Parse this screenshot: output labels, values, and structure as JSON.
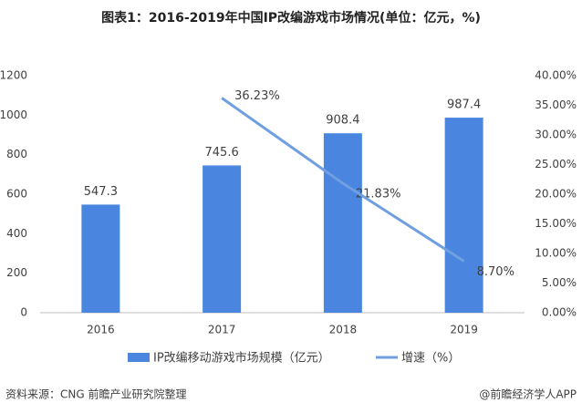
{
  "chart_data": {
    "type": "bar",
    "title": "图表1：2016-2019年中国IP改编游戏市场情况(单位：亿元，%)",
    "categories": [
      "2016",
      "2017",
      "2018",
      "2019"
    ],
    "series": [
      {
        "name": "IP改编移动游戏市场规模（亿元）",
        "type": "bar",
        "color": "#4a86e0",
        "values": [
          547.3,
          745.6,
          908.4,
          987.4
        ]
      },
      {
        "name": "增速（%）",
        "type": "line",
        "axis": "y2",
        "color": "#6f9fe0",
        "values": [
          null,
          36.23,
          21.83,
          8.7
        ],
        "value_labels": [
          null,
          "36.23%",
          "21.83%",
          "8.70%"
        ]
      }
    ],
    "ylim": [
      0,
      1200
    ],
    "yticks": [
      0,
      200,
      400,
      600,
      800,
      1000,
      1200
    ],
    "y2lim": [
      0,
      40
    ],
    "y2ticks": [
      {
        "value": 0,
        "label": "0.00%"
      },
      {
        "value": 5,
        "label": "5.00%"
      },
      {
        "value": 10,
        "label": "10.00%"
      },
      {
        "value": 15,
        "label": "15.00%"
      },
      {
        "value": 20,
        "label": "20.00%"
      },
      {
        "value": 25,
        "label": "25.00%"
      },
      {
        "value": 30,
        "label": "30.00%"
      },
      {
        "value": 35,
        "label": "35.00%"
      },
      {
        "value": 40,
        "label": "40.00%"
      }
    ],
    "grid": false,
    "legend": "bottom",
    "source": "资料来源：CNG 前瞻产业研究院整理",
    "credit": "@前瞻经济学人APP"
  }
}
